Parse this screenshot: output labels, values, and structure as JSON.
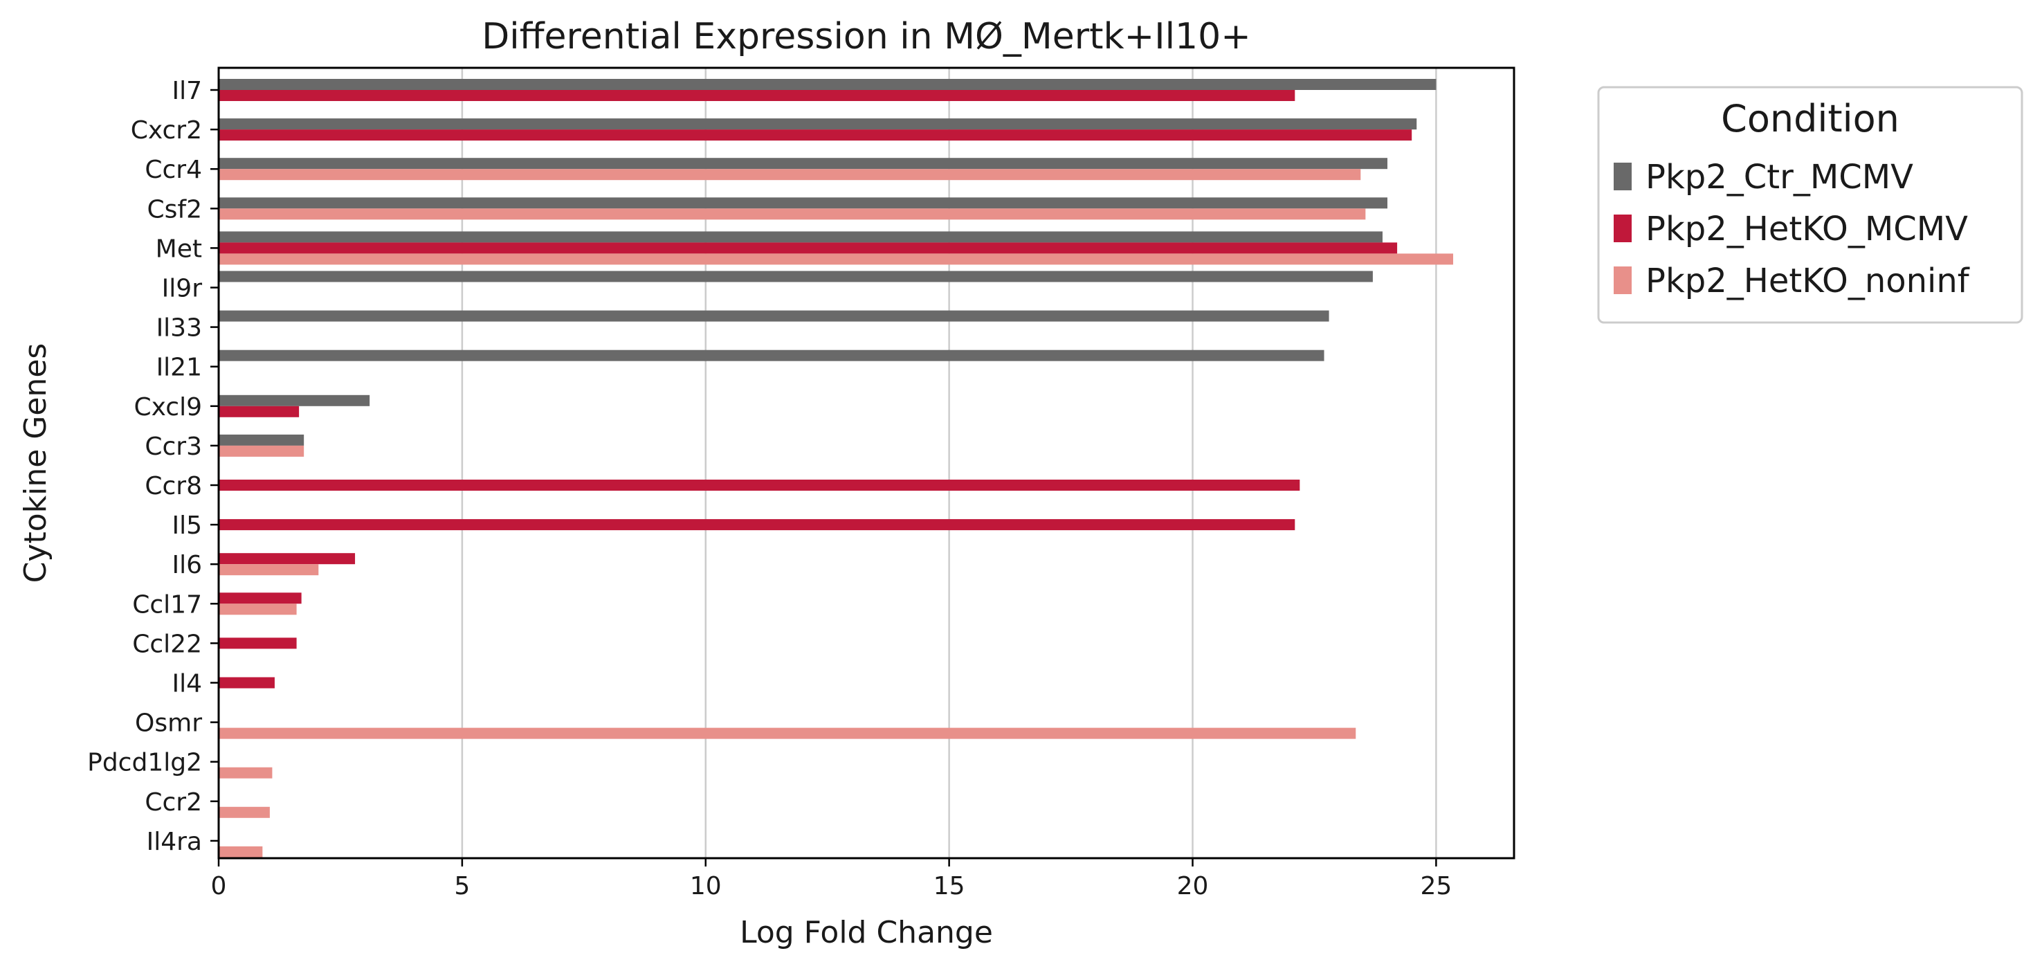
{
  "chart_data": {
    "type": "bar",
    "orientation": "horizontal",
    "title": "Differential Expression in MØ_Mertk+Il10+",
    "xlabel": "Log Fold Change",
    "ylabel": "Cytokine Genes",
    "xlim": [
      0,
      26.6
    ],
    "xticks": [
      0,
      5,
      10,
      15,
      20,
      25
    ],
    "grid": "x",
    "legend": {
      "title": "Condition",
      "placement": "outside-top-right"
    },
    "categories": [
      "Il7",
      "Cxcr2",
      "Ccr4",
      "Csf2",
      "Met",
      "Il9r",
      "Il33",
      "Il21",
      "Cxcl9",
      "Ccr3",
      "Ccr8",
      "Il5",
      "Il6",
      "Ccl17",
      "Ccl22",
      "Il4",
      "Osmr",
      "Pdcd1lg2",
      "Ccr2",
      "Il4ra"
    ],
    "series": [
      {
        "name": "Pkp2_Ctr_MCMV",
        "color": "#696969",
        "values": [
          25.0,
          24.6,
          24.0,
          24.0,
          23.9,
          23.7,
          22.8,
          22.7,
          3.1,
          1.75,
          null,
          null,
          null,
          null,
          null,
          null,
          null,
          null,
          null,
          null
        ]
      },
      {
        "name": "Pkp2_HetKO_MCMV",
        "color": "#c0183a",
        "values": [
          22.1,
          24.5,
          null,
          null,
          24.2,
          null,
          null,
          null,
          1.65,
          null,
          22.2,
          22.1,
          2.8,
          1.7,
          1.6,
          1.15,
          null,
          null,
          null,
          null
        ]
      },
      {
        "name": "Pkp2_HetKO_noninf",
        "color": "#e8908a",
        "values": [
          null,
          null,
          23.45,
          23.55,
          25.35,
          null,
          null,
          null,
          null,
          1.75,
          null,
          null,
          2.05,
          1.6,
          null,
          null,
          23.35,
          1.1,
          1.05,
          0.9
        ]
      }
    ]
  }
}
